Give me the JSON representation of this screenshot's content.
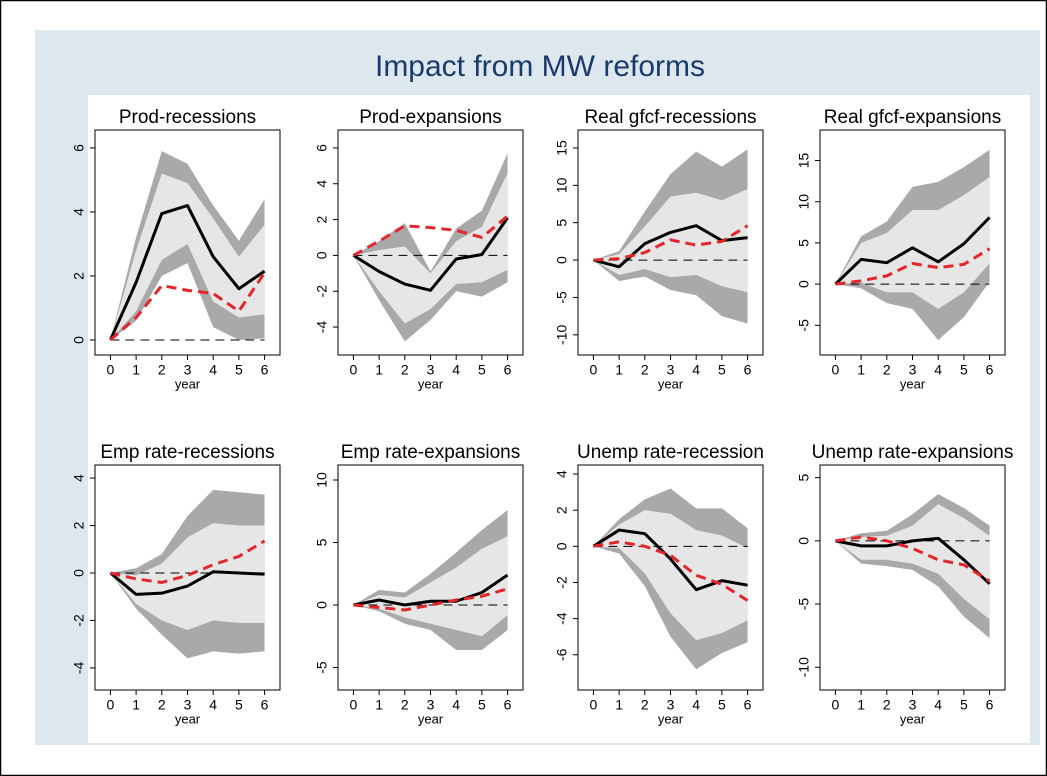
{
  "title": "Impact from MW reforms",
  "chart_data": [
    {
      "type": "line",
      "title": "Prod-recessions",
      "xlabel": "year",
      "x": [
        0,
        1,
        2,
        3,
        4,
        5,
        6
      ],
      "xlim": [
        -0.6,
        6.6
      ],
      "xticks": [
        0,
        1,
        2,
        3,
        4,
        5,
        6
      ],
      "ylim": [
        -0.47,
        6.56
      ],
      "yticks": [
        0,
        2,
        4,
        6
      ],
      "hline": 0,
      "bands": [
        {
          "color": "#a9a9a9",
          "upper": [
            0,
            3.2,
            5.9,
            5.5,
            4.2,
            3.1,
            4.4
          ],
          "lower": [
            0,
            0.6,
            2.0,
            2.4,
            0.4,
            0.0,
            0.05
          ]
        },
        {
          "color": "#e6e6e6",
          "upper": [
            0,
            2.8,
            5.2,
            4.9,
            3.8,
            2.6,
            3.6
          ],
          "lower": [
            0,
            0.9,
            2.5,
            3.0,
            1.2,
            0.7,
            0.8
          ]
        }
      ],
      "series": [
        {
          "color": "#000000",
          "dash": false,
          "values": [
            0,
            1.8,
            3.95,
            4.2,
            2.6,
            1.6,
            2.15
          ]
        },
        {
          "color": "#e3262b",
          "dash": true,
          "values": [
            0,
            0.7,
            1.7,
            1.55,
            1.45,
            0.9,
            2.1
          ]
        }
      ]
    },
    {
      "type": "line",
      "title": "Prod-expansions",
      "xlabel": "year",
      "x": [
        0,
        1,
        2,
        3,
        4,
        5,
        6
      ],
      "xlim": [
        -0.6,
        6.6
      ],
      "xticks": [
        0,
        1,
        2,
        3,
        4,
        5,
        6
      ],
      "ylim": [
        -5.56,
        7.0
      ],
      "yticks": [
        -4,
        -2,
        0,
        2,
        4,
        6
      ],
      "hline": 0,
      "bands": [
        {
          "color": "#a9a9a9",
          "upper": [
            0,
            0.8,
            1.8,
            -0.9,
            1.5,
            2.5,
            5.7
          ],
          "lower": [
            0,
            -2.5,
            -4.8,
            -3.6,
            -2.0,
            -2.3,
            -1.5
          ]
        },
        {
          "color": "#e6e6e6",
          "upper": [
            0,
            0.3,
            0.5,
            -1.0,
            0.8,
            1.6,
            4.6
          ],
          "lower": [
            0,
            -2.0,
            -3.8,
            -3.0,
            -1.6,
            -1.5,
            -0.8
          ]
        }
      ],
      "series": [
        {
          "color": "#000000",
          "dash": false,
          "values": [
            0,
            -0.9,
            -1.6,
            -1.95,
            -0.2,
            0.05,
            2.1
          ]
        },
        {
          "color": "#e3262b",
          "dash": true,
          "values": [
            0,
            0.8,
            1.65,
            1.55,
            1.4,
            1.0,
            2.2
          ]
        }
      ]
    },
    {
      "type": "line",
      "title": "Real gfcf-recessions",
      "xlabel": "year",
      "x": [
        0,
        1,
        2,
        3,
        4,
        5,
        6
      ],
      "xlim": [
        -0.6,
        6.6
      ],
      "xticks": [
        0,
        1,
        2,
        3,
        4,
        5,
        6
      ],
      "ylim": [
        -12.7,
        17.4
      ],
      "yticks": [
        -10,
        -5,
        0,
        5,
        10,
        15
      ],
      "hline": 0,
      "bands": [
        {
          "color": "#a9a9a9",
          "upper": [
            0,
            1.2,
            6.5,
            11.5,
            14.5,
            12.5,
            14.8
          ],
          "lower": [
            0,
            -2.8,
            -2.2,
            -4.0,
            -4.7,
            -7.5,
            -8.5
          ]
        },
        {
          "color": "#e6e6e6",
          "upper": [
            0,
            0.8,
            4.5,
            8.5,
            9.0,
            8.0,
            9.5
          ],
          "lower": [
            0,
            -2.0,
            -1.2,
            -2.3,
            -2.0,
            -3.5,
            -4.3
          ]
        }
      ],
      "series": [
        {
          "color": "#000000",
          "dash": false,
          "values": [
            0,
            -0.9,
            2.2,
            3.7,
            4.6,
            2.6,
            3.0
          ]
        },
        {
          "color": "#e3262b",
          "dash": true,
          "values": [
            0,
            0.2,
            1.0,
            2.7,
            2.0,
            2.5,
            4.6
          ]
        }
      ]
    },
    {
      "type": "line",
      "title": "Real gfcf-expansions",
      "xlabel": "year",
      "x": [
        0,
        1,
        2,
        3,
        4,
        5,
        6
      ],
      "xlim": [
        -0.6,
        6.6
      ],
      "xticks": [
        0,
        1,
        2,
        3,
        4,
        5,
        6
      ],
      "ylim": [
        -8.6,
        18.7
      ],
      "yticks": [
        -5,
        0,
        5,
        10,
        15
      ],
      "hline": 0,
      "bands": [
        {
          "color": "#a9a9a9",
          "upper": [
            0,
            5.8,
            7.6,
            11.8,
            12.4,
            14.2,
            16.3
          ],
          "lower": [
            0,
            -0.5,
            -2.3,
            -3.0,
            -6.8,
            -4.0,
            0.3
          ]
        },
        {
          "color": "#e6e6e6",
          "upper": [
            0,
            5.0,
            6.2,
            9.0,
            9.0,
            10.8,
            13.0
          ],
          "lower": [
            0,
            0.2,
            -1.0,
            -1.0,
            -3.0,
            -1.0,
            2.5
          ]
        }
      ],
      "series": [
        {
          "color": "#000000",
          "dash": false,
          "values": [
            0,
            3.0,
            2.6,
            4.4,
            2.7,
            4.9,
            8.1
          ]
        },
        {
          "color": "#e3262b",
          "dash": true,
          "values": [
            0,
            0.4,
            1.0,
            2.5,
            2.0,
            2.4,
            4.3
          ]
        }
      ]
    },
    {
      "type": "line",
      "title": "Emp rate-recessions",
      "xlabel": "year",
      "x": [
        0,
        1,
        2,
        3,
        4,
        5,
        6
      ],
      "xlim": [
        -0.6,
        6.6
      ],
      "xticks": [
        0,
        1,
        2,
        3,
        4,
        5,
        6
      ],
      "ylim": [
        -4.93,
        4.55
      ],
      "yticks": [
        -4,
        -2,
        0,
        2,
        4
      ],
      "hline": 0,
      "bands": [
        {
          "color": "#a9a9a9",
          "upper": [
            0,
            0.2,
            0.8,
            2.4,
            3.5,
            3.4,
            3.3
          ],
          "lower": [
            0,
            -1.5,
            -2.6,
            -3.6,
            -3.3,
            -3.4,
            -3.3
          ]
        },
        {
          "color": "#e6e6e6",
          "upper": [
            0,
            -0.1,
            0.4,
            1.5,
            2.1,
            2.0,
            2.0
          ],
          "lower": [
            0,
            -1.3,
            -2.0,
            -2.4,
            -2.0,
            -2.1,
            -2.1
          ]
        }
      ],
      "series": [
        {
          "color": "#000000",
          "dash": false,
          "values": [
            0,
            -0.9,
            -0.85,
            -0.55,
            0.05,
            0.0,
            -0.05
          ]
        },
        {
          "color": "#e3262b",
          "dash": true,
          "values": [
            0,
            -0.25,
            -0.4,
            -0.1,
            0.35,
            0.7,
            1.35
          ]
        }
      ]
    },
    {
      "type": "line",
      "title": "Emp rate-expansions",
      "xlabel": "year",
      "x": [
        0,
        1,
        2,
        3,
        4,
        5,
        6
      ],
      "xlim": [
        -0.6,
        6.6
      ],
      "xticks": [
        0,
        1,
        2,
        3,
        4,
        5,
        6
      ],
      "ylim": [
        -6.8,
        11.2
      ],
      "yticks": [
        -5,
        0,
        5,
        10
      ],
      "hline": 0,
      "bands": [
        {
          "color": "#a9a9a9",
          "upper": [
            0,
            1.2,
            1.0,
            2.5,
            4.2,
            6.0,
            7.6
          ],
          "lower": [
            0,
            -0.5,
            -1.5,
            -2.0,
            -3.6,
            -3.6,
            -2.0
          ]
        },
        {
          "color": "#e6e6e6",
          "upper": [
            0,
            0.8,
            0.6,
            1.8,
            3.0,
            4.5,
            5.5
          ],
          "lower": [
            0,
            -0.3,
            -1.0,
            -1.5,
            -2.0,
            -2.5,
            -0.8
          ]
        }
      ],
      "series": [
        {
          "color": "#000000",
          "dash": false,
          "values": [
            0,
            0.4,
            0.0,
            0.3,
            0.3,
            1.0,
            2.4
          ]
        },
        {
          "color": "#e3262b",
          "dash": true,
          "values": [
            0,
            -0.2,
            -0.4,
            0.0,
            0.4,
            0.7,
            1.3
          ]
        }
      ]
    },
    {
      "type": "line",
      "title": "Unemp rate-recession",
      "xlabel": "year",
      "x": [
        0,
        1,
        2,
        3,
        4,
        5,
        6
      ],
      "xlim": [
        -0.6,
        6.6
      ],
      "xticks": [
        0,
        1,
        2,
        3,
        4,
        5,
        6
      ],
      "ylim": [
        -7.95,
        4.5
      ],
      "yticks": [
        -6,
        -4,
        -2,
        0,
        2,
        4
      ],
      "hline": 0,
      "bands": [
        {
          "color": "#a9a9a9",
          "upper": [
            0,
            1.5,
            2.6,
            3.2,
            2.1,
            2.1,
            1.0
          ],
          "lower": [
            0,
            -0.4,
            -2.2,
            -5.0,
            -6.8,
            -5.9,
            -5.3
          ]
        },
        {
          "color": "#e6e6e6",
          "upper": [
            0,
            1.2,
            2.0,
            1.8,
            0.9,
            0.6,
            -0.1
          ],
          "lower": [
            0,
            -0.1,
            -1.5,
            -3.7,
            -5.2,
            -4.8,
            -4.1
          ]
        }
      ],
      "series": [
        {
          "color": "#000000",
          "dash": false,
          "values": [
            0,
            0.9,
            0.7,
            -0.7,
            -2.4,
            -1.9,
            -2.15
          ]
        },
        {
          "color": "#e3262b",
          "dash": true,
          "values": [
            0,
            0.25,
            0.0,
            -0.5,
            -1.6,
            -2.1,
            -3.0
          ]
        }
      ]
    },
    {
      "type": "line",
      "title": "Unemp rate-expansions",
      "xlabel": "year",
      "x": [
        0,
        1,
        2,
        3,
        4,
        5,
        6
      ],
      "xlim": [
        -0.6,
        6.6
      ],
      "xticks": [
        0,
        1,
        2,
        3,
        4,
        5,
        6
      ],
      "ylim": [
        -11.8,
        6.0
      ],
      "yticks": [
        -10,
        -5,
        0,
        5
      ],
      "hline": 0,
      "bands": [
        {
          "color": "#a9a9a9",
          "upper": [
            0,
            0.6,
            0.8,
            2.1,
            3.7,
            2.6,
            1.2
          ],
          "lower": [
            0,
            -1.8,
            -2.0,
            -2.3,
            -3.6,
            -6.0,
            -7.7
          ]
        },
        {
          "color": "#e6e6e6",
          "upper": [
            0,
            0.3,
            0.4,
            1.2,
            2.9,
            1.8,
            0.4
          ],
          "lower": [
            0,
            -1.5,
            -1.5,
            -1.8,
            -2.6,
            -4.6,
            -6.2
          ]
        }
      ],
      "series": [
        {
          "color": "#000000",
          "dash": false,
          "values": [
            0,
            -0.4,
            -0.4,
            0.0,
            0.2,
            -1.5,
            -3.4
          ]
        },
        {
          "color": "#e3262b",
          "dash": true,
          "values": [
            0,
            0.3,
            0.0,
            -0.6,
            -1.5,
            -1.9,
            -3.2
          ]
        }
      ]
    }
  ]
}
